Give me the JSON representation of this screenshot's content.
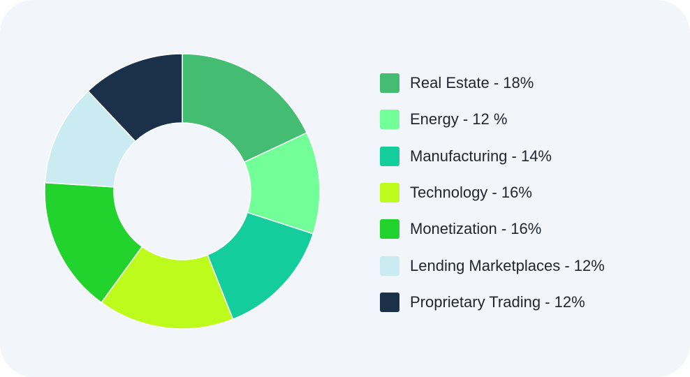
{
  "chart_data": {
    "type": "pie",
    "style": "donut",
    "legend_position": "right",
    "title": "",
    "slices": [
      {
        "label": "Real Estate - 18%",
        "category": "Real Estate",
        "value": 18,
        "color": "#44bd72"
      },
      {
        "label": "Energy - 12 %",
        "category": "Energy",
        "value": 12,
        "color": "#72ff98"
      },
      {
        "label": "Manufacturing - 14%",
        "category": "Manufacturing",
        "value": 14,
        "color": "#13cd9c"
      },
      {
        "label": "Technology - 16%",
        "category": "Technology",
        "value": 16,
        "color": "#bdfb1c"
      },
      {
        "label": "Monetization - 16%",
        "category": "Monetization",
        "value": 16,
        "color": "#21d32c"
      },
      {
        "label": "Lending Marketplaces - 12%",
        "category": "Lending Marketplaces",
        "value": 12,
        "color": "#cbebf2"
      },
      {
        "label": "Proprietary Trading - 12%",
        "category": "Proprietary Trading",
        "value": 12,
        "color": "#1b3149"
      }
    ]
  }
}
